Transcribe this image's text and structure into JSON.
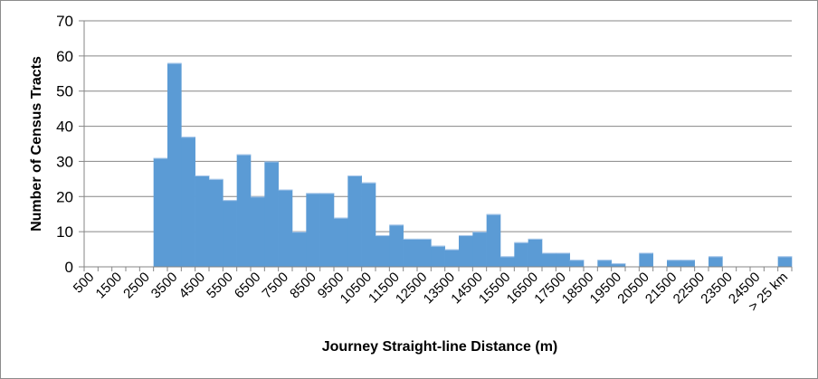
{
  "chart_data": {
    "type": "bar",
    "title": "",
    "xlabel": "Journey Straight-line Distance (m)",
    "ylabel": "Number of Census Tracts",
    "ylim": [
      0,
      70
    ],
    "yticks": [
      0,
      10,
      20,
      30,
      40,
      50,
      60,
      70
    ],
    "grid": true,
    "legend": null,
    "bar_color": "#5b9bd5",
    "categories": [
      "500",
      "1000",
      "1500",
      "2000",
      "2500",
      "3000",
      "3500",
      "4000",
      "4500",
      "5000",
      "5500",
      "6000",
      "6500",
      "7000",
      "7500",
      "8000",
      "8500",
      "9000",
      "9500",
      "10000",
      "10500",
      "11000",
      "11500",
      "12000",
      "12500",
      "13000",
      "13500",
      "14000",
      "14500",
      "15000",
      "15500",
      "16000",
      "16500",
      "17000",
      "17500",
      "18000",
      "18500",
      "19000",
      "19500",
      "20000",
      "20500",
      "21000",
      "21500",
      "22000",
      "22500",
      "23000",
      "23500",
      "24000",
      "24500",
      "25000",
      "> 25 km"
    ],
    "shown_tick_labels": [
      "500",
      "1500",
      "2500",
      "3500",
      "4500",
      "5500",
      "6500",
      "7500",
      "8500",
      "9500",
      "10500",
      "11500",
      "12500",
      "13500",
      "14500",
      "15500",
      "16500",
      "17500",
      "18500",
      "19500",
      "20500",
      "21500",
      "22500",
      "23500",
      "24500",
      "> 25 km"
    ],
    "values": [
      0,
      0,
      0,
      0,
      0,
      31,
      58,
      37,
      26,
      25,
      19,
      32,
      20,
      30,
      22,
      10,
      21,
      21,
      14,
      26,
      24,
      9,
      12,
      8,
      8,
      6,
      5,
      9,
      10,
      15,
      3,
      7,
      8,
      4,
      4,
      2,
      0,
      2,
      1,
      0,
      4,
      0,
      2,
      2,
      0,
      3,
      0,
      0,
      0,
      0,
      3
    ]
  }
}
